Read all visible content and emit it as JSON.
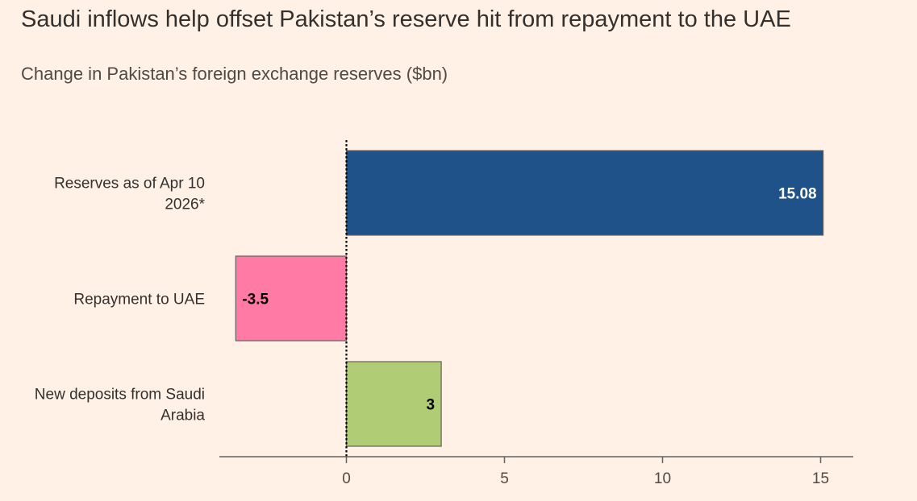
{
  "title": "Saudi inflows help offset Pakistan’s reserve hit from repayment to the UAE",
  "subtitle": "Change in Pakistan’s foreign exchange reserves ($bn)",
  "colors": {
    "background": "#FFF1E5",
    "reserves_bar": "#1F5288",
    "repayment_bar": "#FF7AA5",
    "deposits_bar": "#B0CD75",
    "axis": "#66605C",
    "text": "#33302E"
  },
  "chart_data": {
    "type": "bar",
    "orientation": "horizontal",
    "title": "Saudi inflows help offset Pakistan’s reserve hit from repayment to the UAE",
    "subtitle": "Change in Pakistan’s foreign exchange reserves ($bn)",
    "xlabel": "",
    "ylabel": "",
    "xlim": [
      -4,
      16
    ],
    "xticks": [
      0,
      5,
      10,
      15
    ],
    "grid": false,
    "categories": [
      [
        "Reserves as of Apr 10",
        "2026*"
      ],
      [
        "Repayment to UAE"
      ],
      [
        "New deposits from Saudi",
        "Arabia"
      ]
    ],
    "values": [
      15.08,
      -3.5,
      3
    ],
    "labels": [
      "15.08",
      "-3.5",
      "3"
    ],
    "bar_colors": [
      "#1F5288",
      "#FF7AA5",
      "#B0CD75"
    ],
    "label_colors": [
      "#FFFFFF",
      "#000000",
      "#000000"
    ]
  }
}
